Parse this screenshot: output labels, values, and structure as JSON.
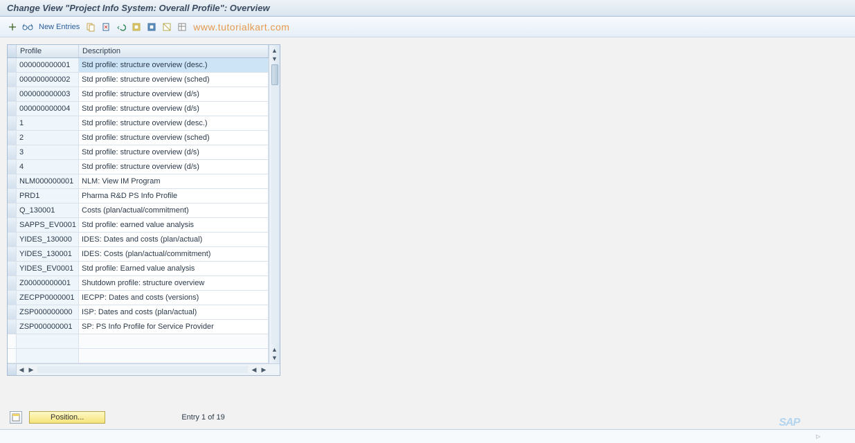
{
  "title": "Change View \"Project Info System: Overall Profile\": Overview",
  "toolbar": {
    "new_entries": "New Entries",
    "watermark": "www.tutorialkart.com"
  },
  "table": {
    "headers": {
      "profile": "Profile",
      "description": "Description"
    },
    "rows": [
      {
        "profile": "000000000001",
        "description": "Std profile: structure overview (desc.)",
        "highlight": true
      },
      {
        "profile": "000000000002",
        "description": "Std profile: structure overview (sched)"
      },
      {
        "profile": "000000000003",
        "description": "Std profile: structure overview (d/s)"
      },
      {
        "profile": "000000000004",
        "description": "Std profile: structure overview (d/s)"
      },
      {
        "profile": "1",
        "description": "Std profile: structure overview (desc.)"
      },
      {
        "profile": "2",
        "description": "Std profile: structure overview (sched)"
      },
      {
        "profile": "3",
        "description": "Std profile: structure overview (d/s)"
      },
      {
        "profile": "4",
        "description": "Std profile: structure overview (d/s)"
      },
      {
        "profile": "NLM000000001",
        "description": "NLM: View IM Program"
      },
      {
        "profile": "PRD1",
        "description": "Pharma R&D PS Info Profile"
      },
      {
        "profile": "Q_130001",
        "description": "Costs (plan/actual/commitment)"
      },
      {
        "profile": "SAPPS_EV0001",
        "description": "Std profile: earned value analysis"
      },
      {
        "profile": "YIDES_130000",
        "description": "IDES: Dates and costs (plan/actual)"
      },
      {
        "profile": "YIDES_130001",
        "description": "IDES: Costs (plan/actual/commitment)"
      },
      {
        "profile": "YIDES_EV0001",
        "description": "Std profile: Earned value analysis"
      },
      {
        "profile": "Z00000000001",
        "description": "Shutdown profile: structure overview"
      },
      {
        "profile": "ZECPP0000001",
        "description": "IECPP: Dates and costs (versions)"
      },
      {
        "profile": "ZSP000000000",
        "description": "ISP: Dates and costs (plan/actual)"
      },
      {
        "profile": "ZSP000000001",
        "description": "SP: PS Info Profile for Service Provider"
      }
    ],
    "empty_rows": 2
  },
  "footer": {
    "position_label": "Position...",
    "entry_text": "Entry 1 of 19"
  },
  "status": {
    "seg1": "",
    "seg2": ""
  },
  "colors": {
    "title_bg_top": "#eef3f7",
    "title_bg_bottom": "#d9e5ef",
    "highlight": "#cde4f7",
    "border": "#a8bdd4",
    "position_btn_top": "#fff8c8",
    "position_btn_bottom": "#f5e57a",
    "watermark": "#e69a4d"
  }
}
